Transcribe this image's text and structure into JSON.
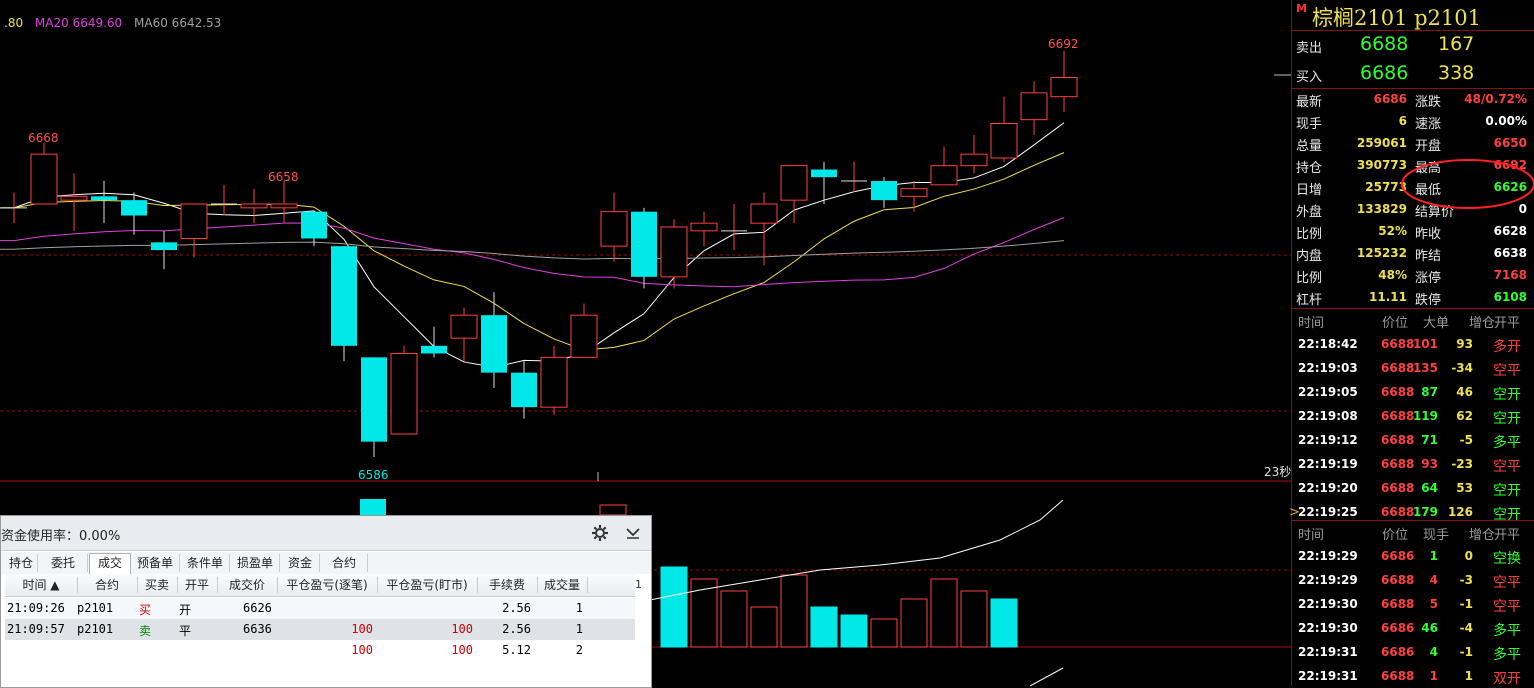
{
  "legend": {
    "ma_partial": ".80",
    "ma20": "MA20 6649.60",
    "ma60": "MA60 6642.53"
  },
  "chart_labels": {
    "high_left": "6668",
    "high_mid": "6658",
    "high_right": "6692",
    "low": "6586",
    "timer": "23秒"
  },
  "chart_data": {
    "type": "candlestick",
    "candles": [
      {
        "o": 6651,
        "h": 6655,
        "l": 6647,
        "c": 6651
      },
      {
        "o": 6652,
        "h": 6668,
        "l": 6652,
        "c": 6665
      },
      {
        "o": 6653,
        "h": 6660,
        "l": 6645,
        "c": 6654
      },
      {
        "o": 6654,
        "h": 6658,
        "l": 6647,
        "c": 6653
      },
      {
        "o": 6653,
        "h": 6655,
        "l": 6644,
        "c": 6649
      },
      {
        "o": 6642,
        "h": 6645,
        "l": 6635,
        "c": 6640
      },
      {
        "o": 6643,
        "h": 6651,
        "l": 6638,
        "c": 6652
      },
      {
        "o": 6652,
        "h": 6657,
        "l": 6649,
        "c": 6652
      },
      {
        "o": 6651,
        "h": 6656,
        "l": 6647,
        "c": 6652
      },
      {
        "o": 6651,
        "h": 6658,
        "l": 6647,
        "c": 6652
      },
      {
        "o": 6650,
        "h": 6650,
        "l": 6641,
        "c": 6643
      },
      {
        "o": 6641,
        "h": 6641,
        "l": 6611,
        "c": 6615
      },
      {
        "o": 6612,
        "h": 6612,
        "l": 6586,
        "c": 6590
      },
      {
        "o": 6592,
        "h": 6615,
        "l": 6592,
        "c": 6613
      },
      {
        "o": 6615,
        "h": 6620,
        "l": 6612,
        "c": 6613
      },
      {
        "o": 6617,
        "h": 6625,
        "l": 6611,
        "c": 6623
      },
      {
        "o": 6623,
        "h": 6629,
        "l": 6604,
        "c": 6608
      },
      {
        "o": 6608,
        "h": 6611,
        "l": 6596,
        "c": 6599
      },
      {
        "o": 6599,
        "h": 6615,
        "l": 6597,
        "c": 6612
      },
      {
        "o": 6612,
        "h": 6626,
        "l": 6612,
        "c": 6623
      },
      {
        "o": 6641,
        "h": 6655,
        "l": 6637,
        "c": 6650
      },
      {
        "o": 6650,
        "h": 6651,
        "l": 6630,
        "c": 6633
      },
      {
        "o": 6633,
        "h": 6648,
        "l": 6630,
        "c": 6646
      },
      {
        "o": 6645,
        "h": 6650,
        "l": 6641,
        "c": 6647
      },
      {
        "o": 6645,
        "h": 6652,
        "l": 6640,
        "c": 6645
      },
      {
        "o": 6647,
        "h": 6655,
        "l": 6636,
        "c": 6652
      },
      {
        "o": 6653,
        "h": 6662,
        "l": 6647,
        "c": 6662
      },
      {
        "o": 6661,
        "h": 6663,
        "l": 6652,
        "c": 6659
      },
      {
        "o": 6658,
        "h": 6663,
        "l": 6655,
        "c": 6658
      },
      {
        "o": 6658,
        "h": 6659,
        "l": 6651,
        "c": 6653
      },
      {
        "o": 6654,
        "h": 6658,
        "l": 6650,
        "c": 6656
      },
      {
        "o": 6657,
        "h": 6667,
        "l": 6657,
        "c": 6662
      },
      {
        "o": 6662,
        "h": 6670,
        "l": 6660,
        "c": 6665
      },
      {
        "o": 6664,
        "h": 6680,
        "l": 6663,
        "c": 6673
      },
      {
        "o": 6674,
        "h": 6684,
        "l": 6670,
        "c": 6681
      },
      {
        "o": 6680,
        "h": 6692,
        "l": 6676,
        "c": 6685
      }
    ],
    "volume": [
      {
        "v": 100,
        "up": false
      },
      {
        "v": 85,
        "up": true
      },
      {
        "v": 70,
        "up": true
      },
      {
        "v": 50,
        "up": true
      },
      {
        "v": 90,
        "up": true
      },
      {
        "v": 50,
        "up": false
      },
      {
        "v": 40,
        "up": false
      },
      {
        "v": 35,
        "up": true
      },
      {
        "v": 60,
        "up": true
      },
      {
        "v": 85,
        "up": true
      },
      {
        "v": 70,
        "up": true
      },
      {
        "v": 60,
        "up": false
      }
    ]
  },
  "quote": {
    "title": "棕榈2101  p2101",
    "m_mark": "M",
    "sell": {
      "label": "卖出",
      "price": "6688",
      "qty": "167"
    },
    "buy": {
      "label": "买入",
      "price": "6686",
      "qty": "338"
    },
    "stats": [
      {
        "l1": "最新",
        "v1": "6686",
        "c1": "red",
        "l2": "涨跌",
        "v2": "48/0.72%",
        "c2": "red"
      },
      {
        "l1": "现手",
        "v1": "6",
        "c1": "yellow",
        "l2": "速涨",
        "v2": "0.00%",
        "c2": "white"
      },
      {
        "l1": "总量",
        "v1": "259061",
        "c1": "yellow",
        "l2": "开盘",
        "v2": "6650",
        "c2": "red"
      },
      {
        "l1": "持仓",
        "v1": "390773",
        "c1": "yellow",
        "l2": "最高",
        "v2": "6692",
        "c2": "red"
      },
      {
        "l1": "日增",
        "v1": "25773",
        "c1": "yellow",
        "l2": "最低",
        "v2": "6626",
        "c2": "green"
      },
      {
        "l1": "外盘",
        "v1": "133829",
        "c1": "yellow",
        "l2": "结算价",
        "v2": "0",
        "c2": "white"
      },
      {
        "l1": "比例",
        "v1": "52%",
        "c1": "yellow",
        "l2": "昨收",
        "v2": "6628",
        "c2": "white"
      },
      {
        "l1": "内盘",
        "v1": "125232",
        "c1": "yellow",
        "l2": "昨结",
        "v2": "6638",
        "c2": "white"
      },
      {
        "l1": "比例",
        "v1": "48%",
        "c1": "yellow",
        "l2": "涨停",
        "v2": "7168",
        "c2": "red"
      },
      {
        "l1": "杠杆",
        "v1": "11.11",
        "c1": "yellow",
        "l2": "跌停",
        "v2": "6108",
        "c2": "green"
      }
    ],
    "ticks1_header": [
      "时间",
      "价位",
      "大单",
      "增仓",
      "开平"
    ],
    "ticks1": [
      {
        "time": "22:18:42",
        "price": "6688",
        "size": "101",
        "sc": "red",
        "chg": "93",
        "cc": "yellow",
        "type": "多开",
        "tc": "red"
      },
      {
        "time": "22:19:03",
        "price": "6688",
        "size": "135",
        "sc": "red",
        "chg": "-34",
        "cc": "yellow",
        "type": "空平",
        "tc": "red"
      },
      {
        "time": "22:19:05",
        "price": "6688",
        "size": "87",
        "sc": "green",
        "chg": "46",
        "cc": "yellow",
        "type": "空开",
        "tc": "green"
      },
      {
        "time": "22:19:08",
        "price": "6688",
        "size": "119",
        "sc": "green",
        "chg": "62",
        "cc": "yellow",
        "type": "空开",
        "tc": "green"
      },
      {
        "time": "22:19:12",
        "price": "6688",
        "size": "71",
        "sc": "green",
        "chg": "-5",
        "cc": "yellow",
        "type": "多平",
        "tc": "green"
      },
      {
        "time": "22:19:19",
        "price": "6688",
        "size": "93",
        "sc": "red",
        "chg": "-23",
        "cc": "yellow",
        "type": "空平",
        "tc": "red"
      },
      {
        "time": "22:19:20",
        "price": "6688",
        "size": "64",
        "sc": "green",
        "chg": "53",
        "cc": "yellow",
        "type": "空开",
        "tc": "green"
      },
      {
        "time": "22:19:25",
        "price": "6688",
        "size": "179",
        "sc": "green",
        "chg": "126",
        "cc": "yellow",
        "type": "空开",
        "tc": "green"
      }
    ],
    "ticks2_header": [
      "时间",
      "价位",
      "现手",
      "增仓",
      "开平"
    ],
    "ticks2": [
      {
        "time": "22:19:29",
        "price": "6686",
        "size": "1",
        "sc": "green",
        "chg": "0",
        "cc": "yellow",
        "type": "空换",
        "tc": "green"
      },
      {
        "time": "22:19:29",
        "price": "6688",
        "size": "4",
        "sc": "red",
        "chg": "-3",
        "cc": "yellow",
        "type": "空平",
        "tc": "red"
      },
      {
        "time": "22:19:30",
        "price": "6688",
        "size": "5",
        "sc": "red",
        "chg": "-1",
        "cc": "yellow",
        "type": "空平",
        "tc": "red"
      },
      {
        "time": "22:19:30",
        "price": "6686",
        "size": "46",
        "sc": "green",
        "chg": "-4",
        "cc": "yellow",
        "type": "多平",
        "tc": "green"
      },
      {
        "time": "22:19:31",
        "price": "6686",
        "size": "4",
        "sc": "green",
        "chg": "-1",
        "cc": "yellow",
        "type": "多平",
        "tc": "green"
      },
      {
        "time": "22:19:31",
        "price": "6688",
        "size": "1",
        "sc": "red",
        "chg": "1",
        "cc": "yellow",
        "type": "双开",
        "tc": "red"
      }
    ]
  },
  "dialog": {
    "title": "资金使用率：0.00%",
    "tabs": [
      "持仓",
      "委托",
      "成交",
      "预备单",
      "条件单",
      "损盈单",
      "资金",
      "合约"
    ],
    "columns": [
      "时间 ▲",
      "合约",
      "买卖",
      "开平",
      "成交价",
      "平仓盈亏(逐笔)",
      "平仓盈亏(盯市)",
      "手续费",
      "成交量"
    ],
    "rows": [
      {
        "time": "21:09:26",
        "contract": "p2101",
        "side": "买",
        "side_color": "#cc0000",
        "oc": "开",
        "price": "6626",
        "pnl1": "",
        "pnl2": "",
        "fee": "2.56",
        "qty": "1"
      },
      {
        "time": "21:09:57",
        "contract": "p2101",
        "side": "卖",
        "side_color": "#008800",
        "oc": "平",
        "price": "6636",
        "pnl1": "100",
        "pnl2": "100",
        "fee": "2.56",
        "qty": "1"
      },
      {
        "time": "",
        "contract": "",
        "side": "",
        "side_color": "#000",
        "oc": "",
        "price": "",
        "pnl1": "100",
        "pnl2": "100",
        "fee": "5.12",
        "qty": "2"
      }
    ],
    "corner_num": "1"
  }
}
